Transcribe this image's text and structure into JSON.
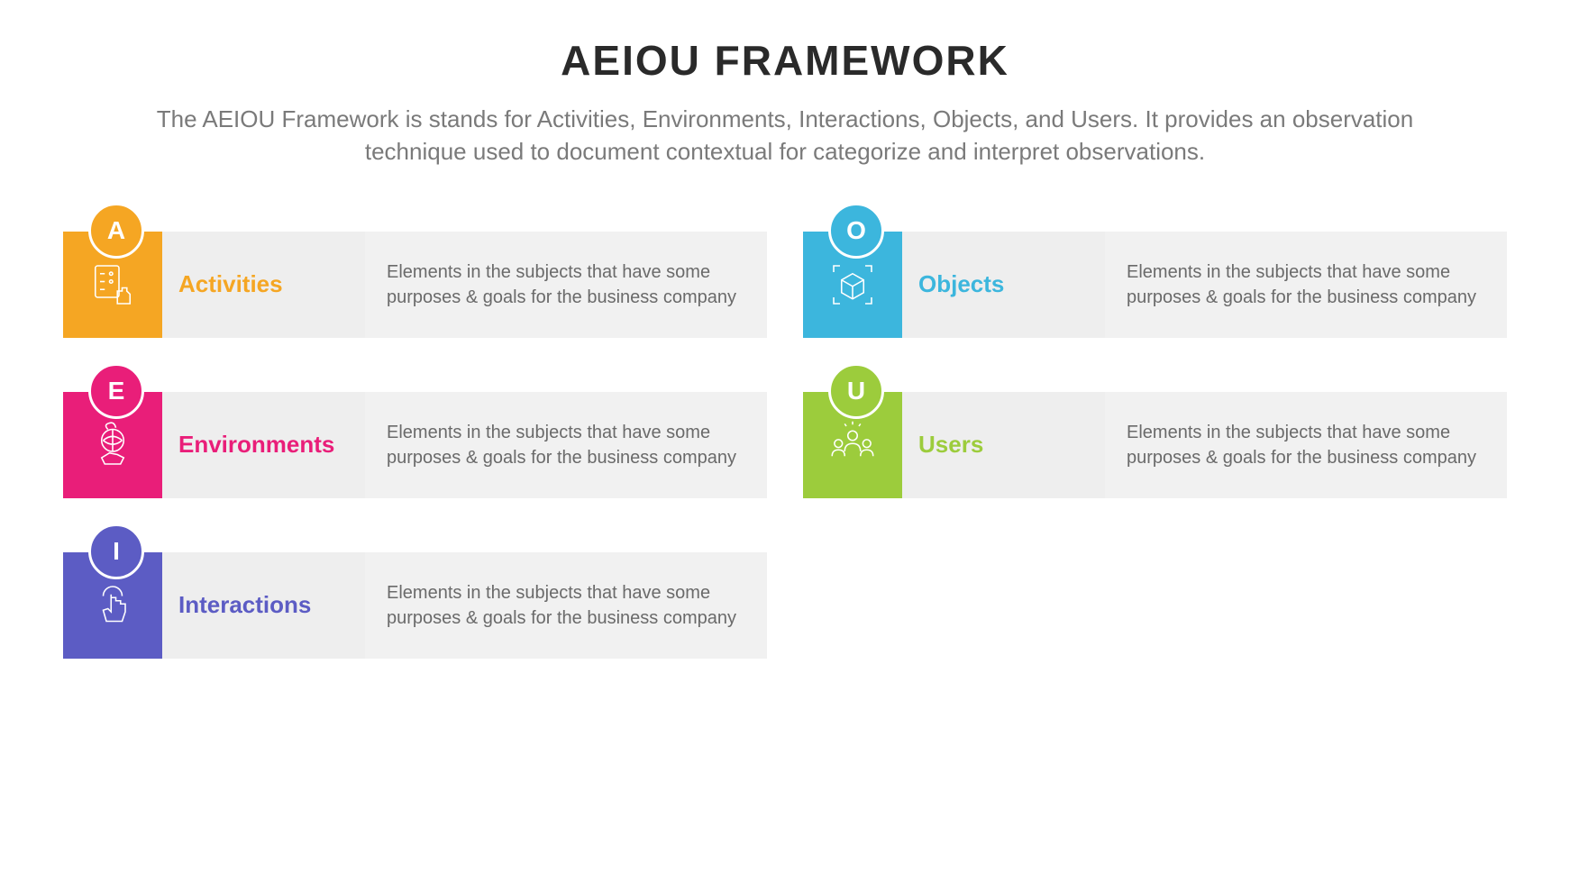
{
  "header": {
    "title": "AEIOU FRAMEWORK",
    "subtitle": "The AEIOU Framework is stands for Activities, Environments, Interactions, Objects, and Users. It provides an observation technique used to document contextual for categorize and interpret observations."
  },
  "layout": {
    "label_bg": "#eeeeee",
    "desc_bg": "#f1f1f1",
    "title_color": "#2a2a2a",
    "subtitle_color": "#7a7a7a",
    "desc_color": "#6a6a6a"
  },
  "items": [
    {
      "letter": "A",
      "label": "Activities",
      "description": "Elements in the subjects that have some purposes & goals for the business company",
      "color": "#f5a623",
      "icon": "checklist-hand"
    },
    {
      "letter": "O",
      "label": "Objects",
      "description": "Elements in the subjects that have some purposes & goals for the business company",
      "color": "#3cb6dd",
      "icon": "cube-focus"
    },
    {
      "letter": "E",
      "label": "Environments",
      "description": "Elements in the subjects that have some purposes & goals for the business company",
      "color": "#e91e79",
      "icon": "globe-hand"
    },
    {
      "letter": "U",
      "label": "Users",
      "description": "Elements in the subjects that have some purposes & goals for the business company",
      "color": "#9ccc3c",
      "icon": "users-group"
    },
    {
      "letter": "I",
      "label": "Interactions",
      "description": "Elements in the subjects that have some purposes & goals for the business company",
      "color": "#5c5cc4",
      "icon": "touch-hand"
    }
  ]
}
